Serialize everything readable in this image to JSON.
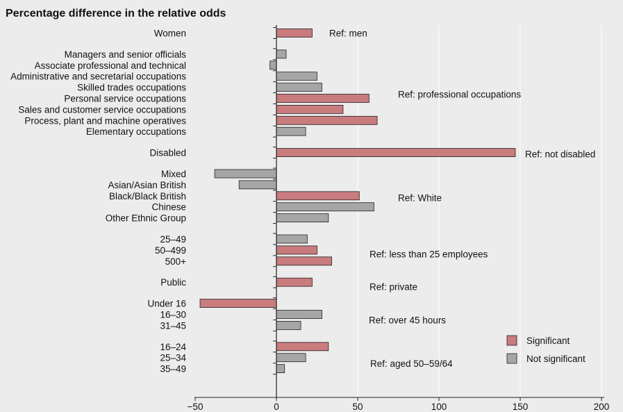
{
  "chart_data": {
    "type": "bar",
    "orientation": "horizontal",
    "title": "Percentage difference in the relative odds",
    "xlabel": "",
    "ylabel": "",
    "xlim": [
      -50,
      200
    ],
    "xticks": [
      -50,
      0,
      50,
      100,
      150,
      200
    ],
    "grid": true,
    "colors": {
      "significant": "#c97b7e",
      "not_significant": "#a6a6a6",
      "background": "#ececec",
      "grid": "#ffffff"
    },
    "legend": {
      "position": "bottom-right",
      "entries": [
        {
          "key": "significant",
          "label": "Significant"
        },
        {
          "key": "not_significant",
          "label": "Not significant"
        }
      ]
    },
    "groups": [
      {
        "reference": "Ref: men",
        "bars": [
          {
            "label": "Women",
            "value": 22,
            "significant": true
          }
        ]
      },
      {
        "reference": "Ref: professional occupations",
        "bars": [
          {
            "label": "Managers and senior officials",
            "value": 6,
            "significant": false
          },
          {
            "label": "Associate professional and technical",
            "value": -4,
            "significant": false
          },
          {
            "label": "Administrative and secretarial occupations",
            "value": 25,
            "significant": false
          },
          {
            "label": "Skilled trades occupations",
            "value": 28,
            "significant": false
          },
          {
            "label": "Personal service occupations",
            "value": 57,
            "significant": true
          },
          {
            "label": "Sales and customer service occupations",
            "value": 41,
            "significant": true
          },
          {
            "label": "Process, plant and machine operatives",
            "value": 62,
            "significant": true
          },
          {
            "label": "Elementary occupations",
            "value": 18,
            "significant": false
          }
        ]
      },
      {
        "reference": "Ref: not disabled",
        "bars": [
          {
            "label": "Disabled",
            "value": 147,
            "significant": true
          }
        ]
      },
      {
        "reference": "Ref: White",
        "bars": [
          {
            "label": "Mixed",
            "value": -38,
            "significant": false
          },
          {
            "label": "Asian/Asian British",
            "value": -23,
            "significant": false
          },
          {
            "label": "Black/Black British",
            "value": 51,
            "significant": true
          },
          {
            "label": "Chinese",
            "value": 60,
            "significant": false
          },
          {
            "label": "Other Ethnic Group",
            "value": 32,
            "significant": false
          }
        ]
      },
      {
        "reference": "Ref: less than 25 employees",
        "bars": [
          {
            "label": "25–49",
            "value": 19,
            "significant": false
          },
          {
            "label": "50–499",
            "value": 25,
            "significant": true
          },
          {
            "label": "500+",
            "value": 34,
            "significant": true
          }
        ]
      },
      {
        "reference": "Ref: private",
        "bars": [
          {
            "label": "Public",
            "value": 22,
            "significant": true
          }
        ]
      },
      {
        "reference": "Ref: over 45 hours",
        "bars": [
          {
            "label": "Under 16",
            "value": -47,
            "significant": true
          },
          {
            "label": "16–30",
            "value": 28,
            "significant": false
          },
          {
            "label": "31–45",
            "value": 15,
            "significant": false
          }
        ]
      },
      {
        "reference": "Ref: aged 50–59/64",
        "bars": [
          {
            "label": "16–24",
            "value": 32,
            "significant": true
          },
          {
            "label": "25–34",
            "value": 18,
            "significant": false
          },
          {
            "label": "35–49",
            "value": 5,
            "significant": false
          }
        ]
      }
    ]
  }
}
